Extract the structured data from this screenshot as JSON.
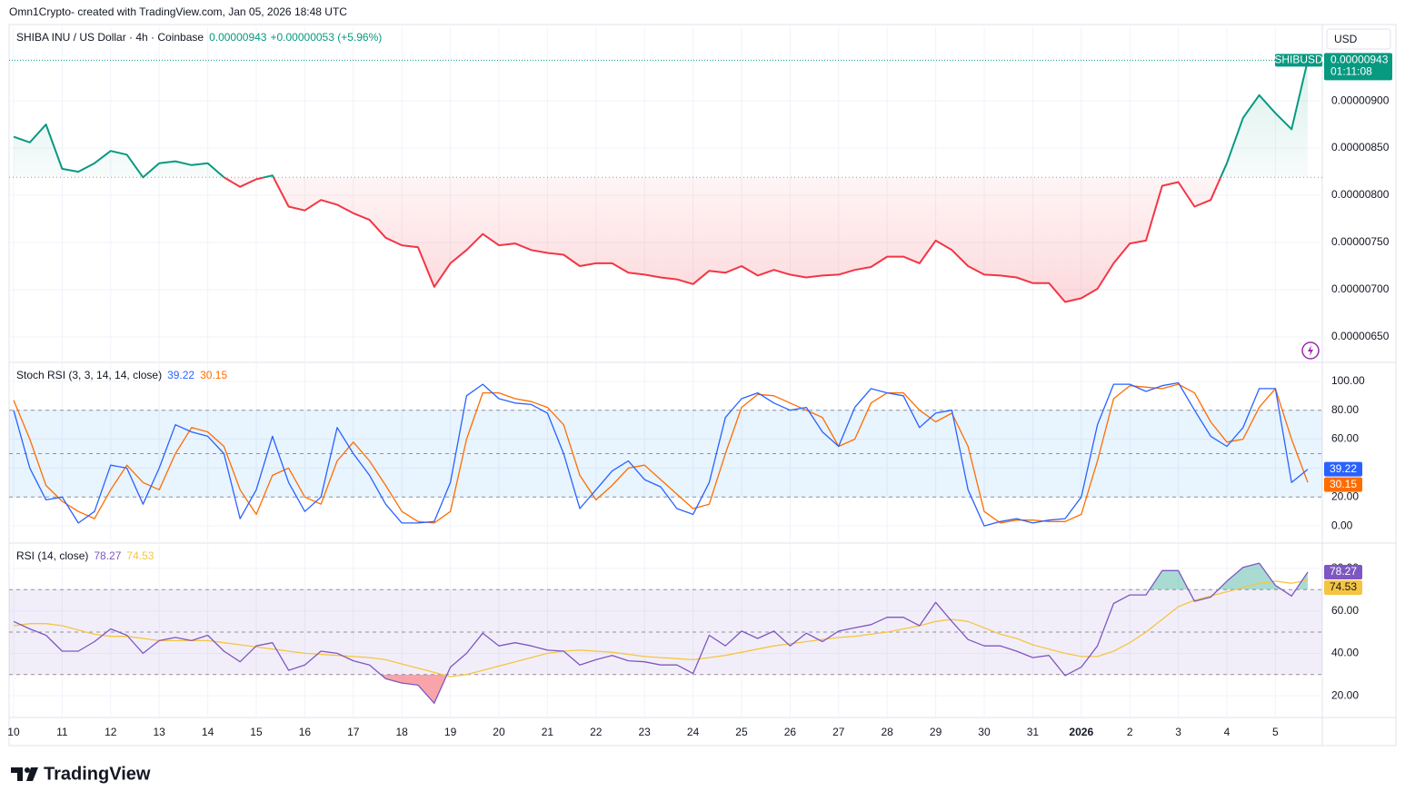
{
  "header": {
    "credit": "Omn1Crypto- created with TradingView.com, Jan 05, 2026 18:48 UTC",
    "symbol": "SHIBA INU / US Dollar · 4h · Coinbase",
    "last": "0.00000943",
    "change": "+0.00000053 (+5.96%)",
    "currency": "USD",
    "countdown": "01:11:08",
    "brand": "TradingView"
  },
  "chart_data": [
    {
      "type": "baseline",
      "series": [
        {
          "name": "SHIBUSD",
          "color_up": "#089981",
          "color_down": "#f23645",
          "values": [
            8.62e-06,
            8.56e-06,
            8.75e-06,
            8.28e-06,
            8.25e-06,
            8.34e-06,
            8.47e-06,
            8.43e-06,
            8.19e-06,
            8.34e-06,
            8.36e-06,
            8.32e-06,
            8.34e-06,
            8.19e-06,
            8.09e-06,
            8.17e-06,
            8.21e-06,
            7.88e-06,
            7.84e-06,
            7.95e-06,
            7.9e-06,
            7.81e-06,
            7.74e-06,
            7.55e-06,
            7.47e-06,
            7.45e-06,
            7.03e-06,
            7.28e-06,
            7.42e-06,
            7.59e-06,
            7.47e-06,
            7.49e-06,
            7.42e-06,
            7.39e-06,
            7.37e-06,
            7.25e-06,
            7.28e-06,
            7.28e-06,
            7.18e-06,
            7.16e-06,
            7.13e-06,
            7.11e-06,
            7.06e-06,
            7.2e-06,
            7.18e-06,
            7.25e-06,
            7.15e-06,
            7.21e-06,
            7.16e-06,
            7.13e-06,
            7.15e-06,
            7.16e-06,
            7.21e-06,
            7.24e-06,
            7.35e-06,
            7.35e-06,
            7.28e-06,
            7.52e-06,
            7.42e-06,
            7.25e-06,
            7.16e-06,
            7.15e-06,
            7.13e-06,
            7.07e-06,
            7.07e-06,
            6.87e-06,
            6.91e-06,
            7.01e-06,
            7.28e-06,
            7.49e-06,
            7.52e-06,
            8.1e-06,
            8.14e-06,
            7.88e-06,
            7.95e-06,
            8.34e-06,
            8.82e-06,
            9.06e-06,
            8.87e-06,
            8.7e-06,
            9.43e-06
          ],
          "last_label": "0.00000943"
        }
      ],
      "baseline": 8.19e-06,
      "xlim": [
        -0.28,
        80.9
      ],
      "xticks": [
        {
          "value": 0,
          "label": "10"
        },
        {
          "value": 3,
          "label": "11"
        },
        {
          "value": 6,
          "label": "12"
        },
        {
          "value": 9,
          "label": "13"
        },
        {
          "value": 12,
          "label": "14"
        },
        {
          "value": 15,
          "label": "15"
        },
        {
          "value": 18,
          "label": "16"
        },
        {
          "value": 21,
          "label": "17"
        },
        {
          "value": 24,
          "label": "18"
        },
        {
          "value": 27,
          "label": "19"
        },
        {
          "value": 30,
          "label": "20"
        },
        {
          "value": 33,
          "label": "21"
        },
        {
          "value": 36,
          "label": "22"
        },
        {
          "value": 39,
          "label": "23"
        },
        {
          "value": 42,
          "label": "24"
        },
        {
          "value": 45,
          "label": "25"
        },
        {
          "value": 48,
          "label": "26"
        },
        {
          "value": 51,
          "label": "27"
        },
        {
          "value": 54,
          "label": "28"
        },
        {
          "value": 57,
          "label": "29"
        },
        {
          "value": 60,
          "label": "30"
        },
        {
          "value": 63,
          "label": "31"
        },
        {
          "value": 66,
          "label": "2026"
        },
        {
          "value": 69,
          "label": "2"
        },
        {
          "value": 72,
          "label": "3"
        },
        {
          "value": 75,
          "label": "4"
        },
        {
          "value": 78,
          "label": "5"
        }
      ],
      "ylim": [
        6.24e-06,
        9.78e-06
      ],
      "yticks": [
        {
          "value": 6.5e-06,
          "label": "0.00000650"
        },
        {
          "value": 7e-06,
          "label": "0.00000700"
        },
        {
          "value": 7.5e-06,
          "label": "0.00000750"
        },
        {
          "value": 8e-06,
          "label": "0.00000800"
        },
        {
          "value": 8.5e-06,
          "label": "0.00000850"
        },
        {
          "value": 9e-06,
          "label": "0.00000900"
        }
      ],
      "grid": true
    },
    {
      "type": "oscillator",
      "title": "Stoch RSI (3, 3, 14, 14, close)",
      "series": [
        {
          "color": "#2962ff",
          "values": [
            80,
            40,
            18,
            20,
            2,
            10,
            42,
            40,
            15,
            40,
            70,
            65,
            62,
            50,
            5,
            25,
            62,
            30,
            10,
            20,
            68,
            50,
            35,
            15,
            2,
            2,
            3,
            30,
            90,
            98,
            88,
            85,
            84,
            78,
            50,
            12,
            25,
            38,
            45,
            32,
            27,
            12,
            8,
            30,
            75,
            88,
            92,
            85,
            80,
            82,
            65,
            55,
            82,
            95,
            92,
            90,
            68,
            78,
            80,
            25,
            0,
            3,
            5,
            2,
            4,
            5,
            20,
            70,
            98,
            98,
            93,
            97,
            99,
            80,
            62,
            55,
            68,
            95,
            95,
            30,
            39.22
          ]
        },
        {
          "color": "#ff6d00",
          "values": [
            87,
            60,
            28,
            17,
            10,
            5,
            25,
            42,
            30,
            25,
            50,
            68,
            65,
            55,
            25,
            8,
            35,
            40,
            20,
            15,
            45,
            58,
            45,
            28,
            10,
            3,
            2,
            10,
            60,
            92,
            92,
            88,
            86,
            82,
            70,
            35,
            18,
            28,
            40,
            42,
            32,
            22,
            12,
            15,
            50,
            82,
            91,
            90,
            85,
            80,
            75,
            55,
            60,
            85,
            92,
            92,
            80,
            72,
            78,
            55,
            10,
            2,
            4,
            4,
            3,
            3,
            8,
            45,
            88,
            97,
            96,
            95,
            98,
            92,
            72,
            58,
            60,
            82,
            95,
            60,
            30.15
          ]
        }
      ],
      "levels": [
        80,
        50,
        20
      ],
      "band_color": "rgba(33,150,243,0.1)",
      "ylim": [
        -11.25,
        112.5
      ],
      "yticks": [
        {
          "value": 0,
          "label": "0.00"
        },
        {
          "value": 20,
          "label": "20.00"
        },
        {
          "value": 40,
          "label": "40.00"
        },
        {
          "value": 60,
          "label": "60.00"
        },
        {
          "value": 80,
          "label": "80.00"
        },
        {
          "value": 100,
          "label": "100.00"
        }
      ],
      "grid": true
    },
    {
      "type": "oscillator",
      "title": "RSI (14, close)",
      "series": [
        {
          "color": "#7e57c2",
          "values": [
            55,
            51.5,
            48.5,
            41,
            41,
            45.5,
            51.5,
            48.5,
            40,
            46,
            47.5,
            46,
            48.5,
            41,
            36,
            43.5,
            45,
            32,
            34.5,
            41,
            40,
            36.5,
            34.5,
            28,
            26,
            25,
            16.5,
            33.5,
            40,
            49.5,
            43.5,
            45,
            43.5,
            41.5,
            41,
            34.5,
            37,
            39,
            36.5,
            36,
            34.5,
            34.5,
            30.5,
            48.5,
            43.5,
            50.5,
            47,
            50.5,
            43.5,
            49.5,
            45.5,
            50.5,
            52,
            53.5,
            57,
            57,
            53,
            64,
            55,
            46.5,
            43.5,
            43.5,
            41,
            38,
            39,
            29.5,
            33.5,
            43.5,
            63.5,
            67.5,
            67.5,
            79,
            79,
            64.5,
            66.5,
            74,
            80.5,
            82.5,
            72,
            67,
            78.27
          ]
        },
        {
          "color": "#f5c542",
          "values": [
            53,
            54,
            54,
            53,
            51,
            49,
            48,
            48,
            47,
            46,
            46,
            46,
            46,
            45,
            44,
            43,
            42,
            41,
            40,
            39.5,
            39,
            38.5,
            38,
            37,
            35,
            33,
            31,
            29,
            30,
            32,
            34,
            36,
            38,
            40,
            41,
            41.5,
            41,
            40.5,
            39.5,
            38.5,
            38,
            37.5,
            37,
            38,
            39,
            40.5,
            42,
            43.5,
            44.5,
            45.5,
            46.5,
            47.5,
            48,
            49,
            50,
            51.5,
            53,
            55,
            56,
            55,
            52,
            49,
            47,
            44,
            42,
            40,
            38.5,
            38.5,
            41,
            45,
            50,
            56,
            62,
            65,
            67,
            69,
            71,
            73,
            74,
            73,
            74.53
          ]
        }
      ],
      "levels": [
        70,
        50,
        30
      ],
      "band_color": "rgba(126,87,194,0.1)",
      "overbought_color": "rgba(8,153,129,0.35)",
      "oversold_color": "rgba(242,54,69,0.45)",
      "ylim": [
        10.2,
        91.1
      ],
      "yticks": [
        {
          "value": 20,
          "label": "20.00"
        },
        {
          "value": 40,
          "label": "40.00"
        },
        {
          "value": 60,
          "label": "60.00"
        },
        {
          "value": 80,
          "label": "80.00"
        }
      ],
      "grid": true
    }
  ]
}
